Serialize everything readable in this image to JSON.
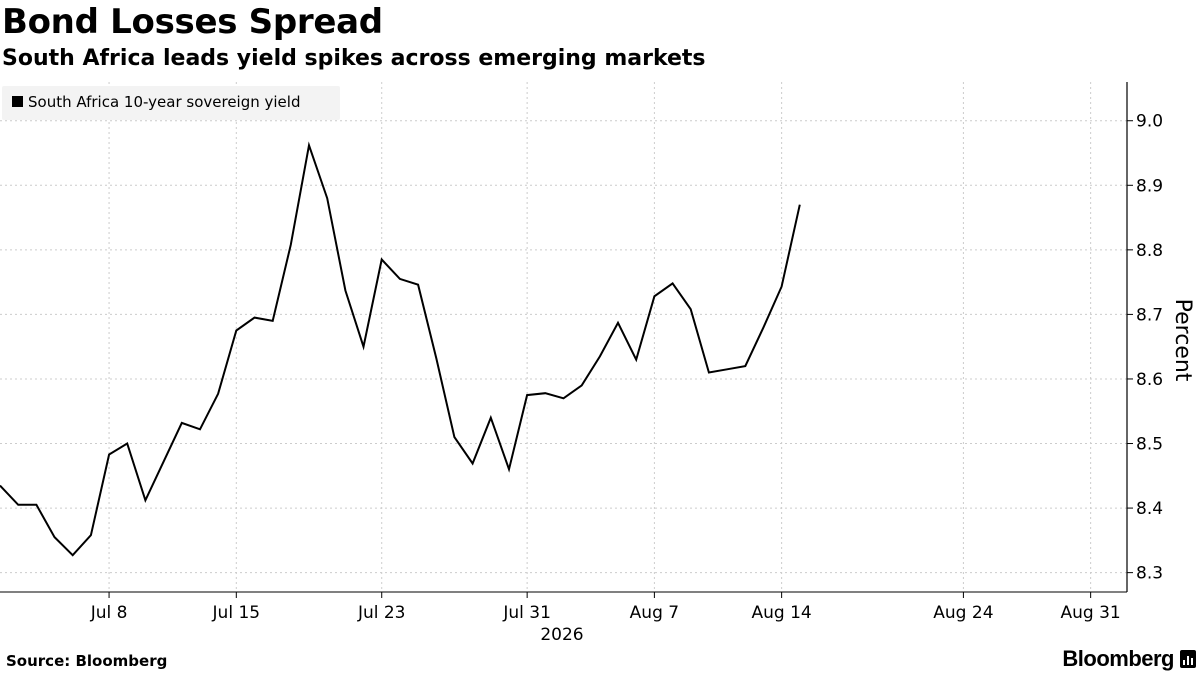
{
  "header": {
    "title": "Bond Losses Spread",
    "subtitle": "South Africa leads yield spikes across emerging markets"
  },
  "footer": {
    "source": "Source: Bloomberg",
    "brand": "Bloomberg"
  },
  "icons": {
    "brand_mark": "bloomberg-terminal-icon"
  },
  "colors": {
    "line": "#000000",
    "grid": "#cccccc",
    "legend_bg": "#f3f3f3"
  },
  "chart_data": {
    "type": "line",
    "title": "Bond Losses Spread",
    "subtitle": "South Africa leads yield spikes across emerging markets",
    "ylabel": "Percent",
    "ylim": [
      8.27,
      9.06
    ],
    "yticks": [
      9.0,
      8.9,
      8.8,
      8.7,
      8.6,
      8.5,
      8.4,
      8.3
    ],
    "ytick_labels": [
      "9.0",
      "8.9",
      "8.8",
      "8.7",
      "8.6",
      "8.5",
      "8.4",
      "8.3"
    ],
    "xlim": [
      "2026-07-02",
      "2026-09-02"
    ],
    "xticks": [
      {
        "date": "2026-07-08",
        "label": "Jul 8"
      },
      {
        "date": "2026-07-15",
        "label": "Jul 15"
      },
      {
        "date": "2026-07-23",
        "label": "Jul 23"
      },
      {
        "date": "2026-07-31",
        "label": "Jul 31"
      },
      {
        "date": "2026-08-07",
        "label": "Aug 7"
      },
      {
        "date": "2026-08-14",
        "label": "Aug 14"
      },
      {
        "date": "2026-08-24",
        "label": "Aug 24"
      },
      {
        "date": "2026-08-31",
        "label": "Aug 31"
      }
    ],
    "year_label": "2026",
    "legend": [
      "South Africa 10-year sovereign yield"
    ],
    "legend_position": "top-left",
    "grid": true,
    "y_axis_side": "right",
    "series": [
      {
        "name": "South Africa 10-year sovereign yield",
        "points": [
          [
            "2026-07-02",
            8.435
          ],
          [
            "2026-07-03",
            8.405
          ],
          [
            "2026-07-04",
            8.405
          ],
          [
            "2026-07-05",
            8.355
          ],
          [
            "2026-07-06",
            8.327
          ],
          [
            "2026-07-07",
            8.358
          ],
          [
            "2026-07-08",
            8.483
          ],
          [
            "2026-07-09",
            8.5
          ],
          [
            "2026-07-10",
            8.412
          ],
          [
            "2026-07-12",
            8.532
          ],
          [
            "2026-07-13",
            8.522
          ],
          [
            "2026-07-14",
            8.577
          ],
          [
            "2026-07-15",
            8.675
          ],
          [
            "2026-07-16",
            8.695
          ],
          [
            "2026-07-17",
            8.69
          ],
          [
            "2026-07-18",
            8.808
          ],
          [
            "2026-07-19",
            8.962
          ],
          [
            "2026-07-20",
            8.88
          ],
          [
            "2026-07-21",
            8.737
          ],
          [
            "2026-07-22",
            8.65
          ],
          [
            "2026-07-23",
            8.785
          ],
          [
            "2026-07-24",
            8.755
          ],
          [
            "2026-07-25",
            8.746
          ],
          [
            "2026-07-26",
            8.632
          ],
          [
            "2026-07-27",
            8.51
          ],
          [
            "2026-07-28",
            8.469
          ],
          [
            "2026-07-29",
            8.54
          ],
          [
            "2026-07-30",
            8.46
          ],
          [
            "2026-07-31",
            8.575
          ],
          [
            "2026-08-01",
            8.578
          ],
          [
            "2026-08-02",
            8.57
          ],
          [
            "2026-08-03",
            8.59
          ],
          [
            "2026-08-04",
            8.635
          ],
          [
            "2026-08-05",
            8.687
          ],
          [
            "2026-08-06",
            8.63
          ],
          [
            "2026-08-07",
            8.728
          ],
          [
            "2026-08-08",
            8.748
          ],
          [
            "2026-08-09",
            8.708
          ],
          [
            "2026-08-10",
            8.61
          ],
          [
            "2026-08-11",
            8.615
          ],
          [
            "2026-08-12",
            8.62
          ],
          [
            "2026-08-13",
            8.68
          ],
          [
            "2026-08-14",
            8.743
          ],
          [
            "2026-08-15",
            8.87
          ]
        ]
      }
    ]
  }
}
